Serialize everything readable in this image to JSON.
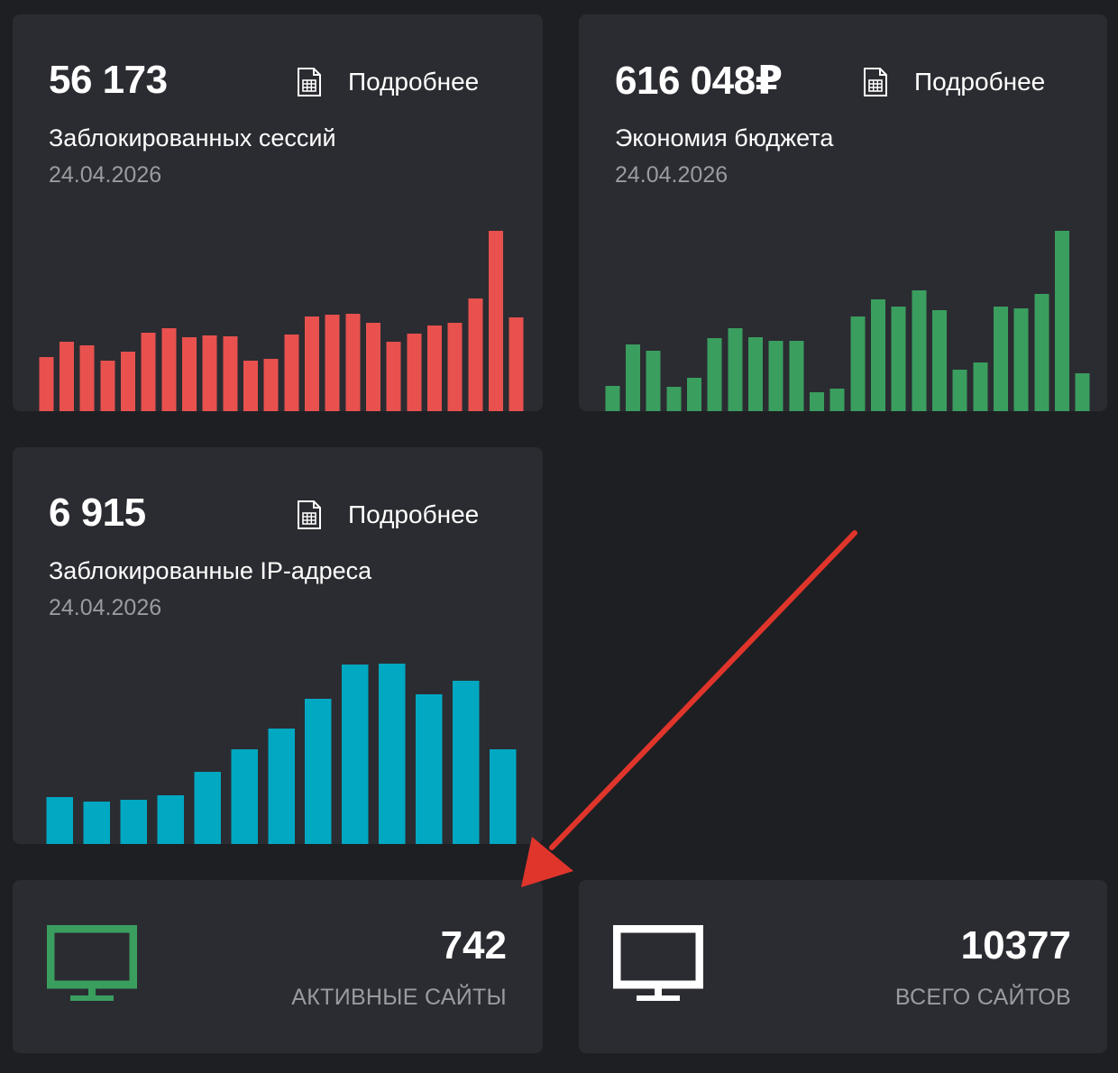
{
  "cards": {
    "sessions": {
      "value": "56 173",
      "details_label": "Подробнее",
      "details_icon": "spreadsheet-icon",
      "title": "Заблокированных сессий",
      "date": "24.04.2026",
      "bar_color": "#e8514e"
    },
    "budget": {
      "value": "616 048₽",
      "details_label": "Подробнее",
      "details_icon": "spreadsheet-icon",
      "title": "Экономия бюджета",
      "date": "24.04.2026",
      "bar_color": "#3a9e5f"
    },
    "ips": {
      "value": "6 915",
      "details_label": "Подробнее",
      "details_icon": "spreadsheet-icon",
      "title": "Заблокированные IP-адреса",
      "date": "24.04.2026",
      "bar_color": "#00a8c2"
    }
  },
  "stats": {
    "active": {
      "value": "742",
      "label": "АКТИВНЫЕ САЙТЫ",
      "icon": "monitor-icon",
      "icon_color": "#3a9e5f"
    },
    "total": {
      "value": "10377",
      "label": "ВСЕГО САЙТОВ",
      "icon": "monitor-icon",
      "icon_color": "#ffffff"
    }
  },
  "annotation": {
    "arrow_color": "#e0352b",
    "points_to": "active-sites-card"
  },
  "chart_data": [
    {
      "type": "bar",
      "series": [
        {
          "values": [
            60,
            77,
            73,
            56,
            66,
            87,
            92,
            82,
            84,
            83,
            56,
            58,
            85,
            105,
            107,
            108,
            98,
            77,
            86,
            95,
            98,
            125,
            200,
            104
          ]
        }
      ],
      "ylim": [
        0,
        200
      ]
    },
    {
      "type": "bar",
      "series": [
        {
          "values": [
            28,
            74,
            67,
            27,
            37,
            81,
            92,
            82,
            78,
            78,
            21,
            25,
            105,
            124,
            116,
            134,
            112,
            46,
            54,
            116,
            114,
            130,
            200,
            42
          ]
        }
      ],
      "ylim": [
        0,
        200
      ]
    },
    {
      "type": "bar",
      "series": [
        {
          "values": [
            52,
            47,
            49,
            54,
            80,
            105,
            128,
            161,
            199,
            200,
            166,
            181,
            105
          ]
        }
      ],
      "ylim": [
        0,
        200
      ]
    }
  ]
}
